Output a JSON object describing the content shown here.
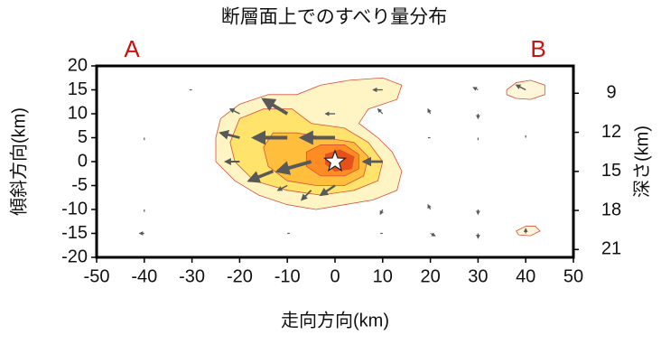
{
  "chart_data": {
    "type": "slip-map",
    "title": "断層面上でのすべり量分布",
    "xlabel": "走向方向(km)",
    "ylabel": "傾斜方向(km)",
    "y2label": "深さ(km)",
    "annotations": [
      "A",
      "B"
    ],
    "annotation_color": "#cc1111",
    "xlim": [
      -50,
      50
    ],
    "xticks": [
      -50,
      -40,
      -30,
      -20,
      -10,
      0,
      10,
      20,
      30,
      40,
      50
    ],
    "ylim": [
      -20,
      20
    ],
    "yticks": [
      -20,
      -15,
      -10,
      -5,
      0,
      5,
      10,
      15,
      20
    ],
    "y2lim": [
      21.6,
      6.9
    ],
    "y2ticks": [
      9,
      12,
      15,
      18,
      21
    ],
    "contour_line_color": "#d8503a",
    "contours": [
      {
        "color": "#fff5c4",
        "x": [
          -25,
          -24,
          -20,
          -14,
          -8,
          -3,
          3,
          10,
          14,
          13,
          7,
          5,
          9,
          12,
          14,
          13,
          8,
          2,
          -4,
          -10,
          -16,
          -21,
          -25
        ],
        "y": [
          5,
          9,
          12,
          14,
          14,
          16,
          17,
          17.5,
          16,
          13,
          11,
          8,
          5,
          2,
          -2,
          -6,
          -8,
          -9,
          -10,
          -9,
          -7,
          -4,
          0
        ]
      },
      {
        "color": "#fff5d8",
        "x": [
          36,
          38,
          41,
          44,
          44,
          41,
          38,
          36
        ],
        "y": [
          15,
          16.5,
          17,
          16,
          14,
          13,
          13.2,
          14
        ]
      },
      {
        "color": "#fff5d8",
        "x": [
          38,
          40,
          42,
          43,
          41,
          38.5
        ],
        "y": [
          -14.5,
          -13.5,
          -13.5,
          -14.5,
          -15.5,
          -15.3
        ]
      },
      {
        "color": "#ffe36a",
        "x": [
          -22,
          -20,
          -15,
          -9,
          -5,
          2,
          7,
          10,
          9,
          4,
          -3,
          -10,
          -17,
          -21
        ],
        "y": [
          4,
          9,
          11,
          11,
          8,
          7,
          4,
          0,
          -4,
          -6,
          -7,
          -6,
          -4,
          0
        ]
      },
      {
        "color": "#ffbf3c",
        "x": [
          -15,
          -13,
          -8,
          -2,
          4,
          7,
          6,
          2,
          -4,
          -10,
          -14
        ],
        "y": [
          3,
          6,
          6,
          5,
          4,
          1,
          -3,
          -5,
          -5,
          -4,
          -1
        ]
      },
      {
        "color": "#ff8c22",
        "x": [
          -6,
          -3,
          2,
          5,
          5,
          2,
          -3,
          -6
        ],
        "y": [
          2,
          3.5,
          3.5,
          1.5,
          -1.5,
          -3,
          -3,
          -1
        ]
      },
      {
        "color": "#e8501a",
        "x": [
          -2,
          1,
          4,
          3.5,
          0,
          -2
        ],
        "y": [
          1.5,
          2.5,
          1,
          -1.5,
          -2,
          -0.5
        ]
      }
    ],
    "vector_color": "#595959",
    "vectors": {
      "x": [
        -10,
        -20,
        -10,
        0,
        -20,
        -5,
        -13,
        10,
        -20,
        -10,
        -5,
        0,
        0,
        10,
        10,
        -30,
        30,
        40,
        20,
        30,
        20,
        30,
        40,
        -40,
        -40,
        -40,
        20,
        30,
        10,
        20,
        30,
        40,
        10,
        -10
      ],
      "y": [
        10,
        10,
        5,
        5,
        5,
        0,
        -2,
        0,
        0,
        -5,
        -6,
        -5,
        10,
        10,
        15,
        15,
        15,
        15,
        10,
        10,
        5,
        5,
        5,
        5,
        -10,
        -15,
        -10,
        -10,
        -10,
        -15,
        -15,
        -15,
        -15,
        -15
      ],
      "dx": [
        -5,
        -2,
        -7,
        -7,
        -4,
        -7,
        -5,
        -4,
        -3,
        -2,
        -2,
        -3,
        -2,
        -1,
        -2,
        -0.5,
        -1,
        -2,
        -0.5,
        0,
        -0.5,
        0,
        0,
        0,
        0,
        -1,
        -0.5,
        0,
        -0.5,
        1,
        0,
        0,
        -0.5,
        0.5
      ],
      "dy": [
        3,
        1,
        0,
        0,
        1,
        -2,
        -2,
        0,
        0,
        -1,
        -2,
        -2,
        0,
        1,
        0,
        0,
        0.5,
        1,
        1,
        -1,
        0,
        -0.5,
        0.5,
        -0.5,
        -0.5,
        0,
        1,
        -1,
        -1,
        -0.5,
        -1,
        1,
        0,
        0
      ]
    },
    "hypocenter": {
      "x": 0,
      "y": 0
    }
  }
}
